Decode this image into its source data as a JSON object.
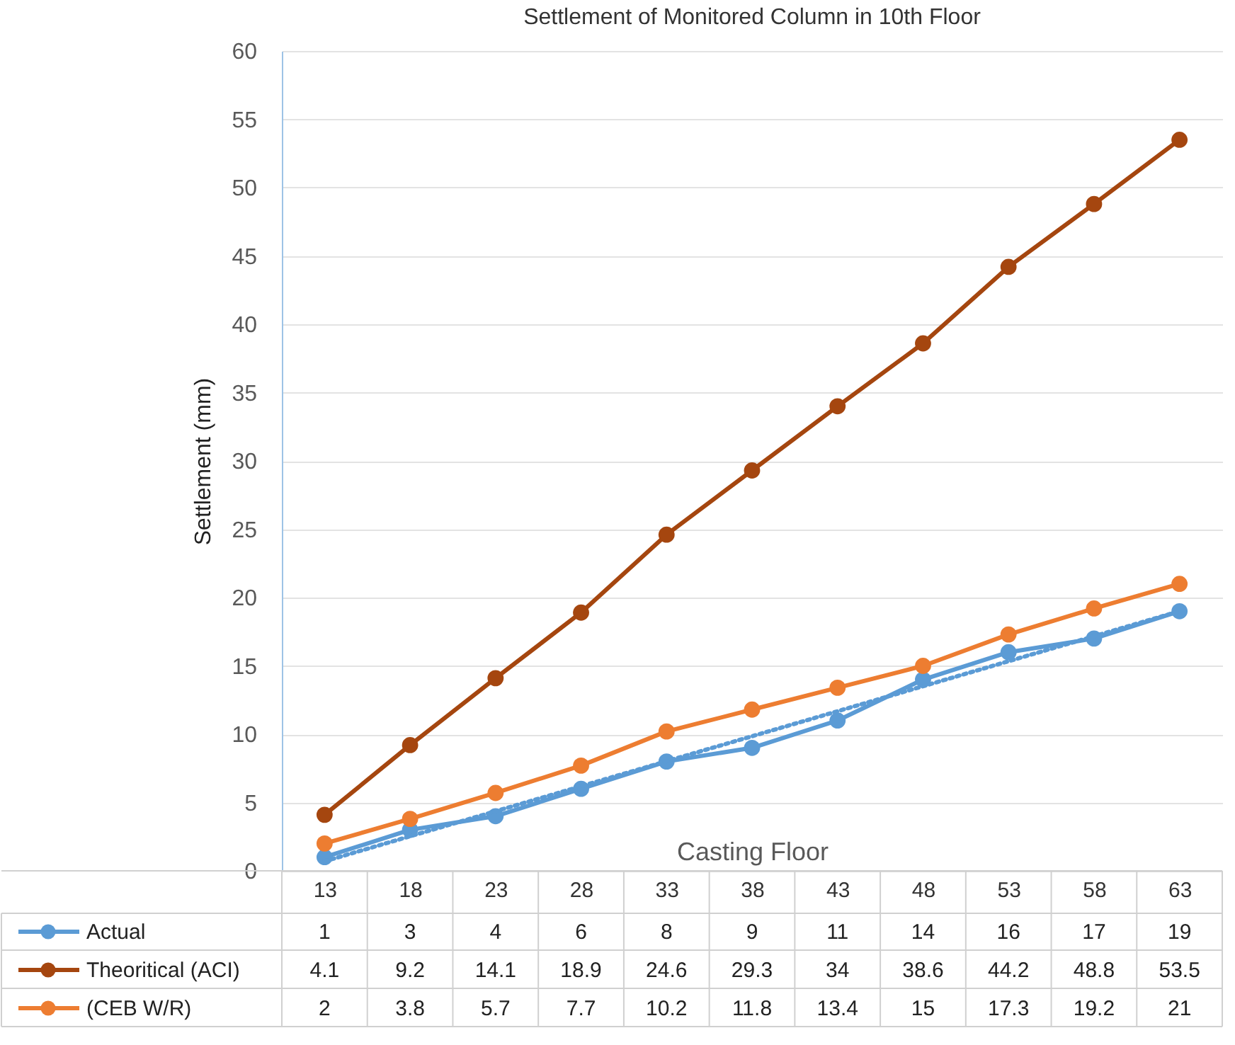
{
  "chart_data": {
    "type": "line",
    "title": "Settlement of Monitored Column in 10th Floor",
    "xlabel": "Casting Floor",
    "ylabel": "Settlement (mm)",
    "categories": [
      "13",
      "18",
      "23",
      "28",
      "33",
      "38",
      "43",
      "48",
      "53",
      "58",
      "63"
    ],
    "series": [
      {
        "name": "Actual",
        "color": "#5b9bd5",
        "values": [
          1,
          3,
          4,
          6,
          8,
          9,
          11,
          14,
          16,
          17,
          19
        ],
        "value_labels": [
          "1",
          "3",
          "4",
          "6",
          "8",
          "9",
          "11",
          "14",
          "16",
          "17",
          "19"
        ]
      },
      {
        "name": "Theoritical (ACI)",
        "color": "#a5460f",
        "values": [
          4.1,
          9.2,
          14.1,
          18.9,
          24.6,
          29.3,
          34,
          38.6,
          44.2,
          48.8,
          53.5
        ],
        "value_labels": [
          "4.1",
          "9.2",
          "14.1",
          "18.9",
          "24.6",
          "29.3",
          "34",
          "38.6",
          "44.2",
          "48.8",
          "53.5"
        ]
      },
      {
        "name": "(CEB W/R)",
        "color": "#ed7d31",
        "values": [
          2,
          3.8,
          5.7,
          7.7,
          10.2,
          11.8,
          13.4,
          15,
          17.3,
          19.2,
          21
        ],
        "value_labels": [
          "2",
          "3.8",
          "5.7",
          "7.7",
          "10.2",
          "11.8",
          "13.4",
          "15",
          "17.3",
          "19.2",
          "21"
        ]
      },
      {
        "type": "line",
        "x": [
          "13",
          "63"
        ],
        "values": [
          0.7,
          19.0
        ],
        "color": "#5b9bd5",
        "line_style": "dotted",
        "marker": "none"
      }
    ],
    "ylim": [
      0,
      60
    ],
    "yticks": [
      0,
      5,
      10,
      15,
      20,
      25,
      30,
      35,
      40,
      45,
      50,
      55,
      60
    ],
    "grid": "y",
    "marker": "circle",
    "legend": "bottom"
  }
}
